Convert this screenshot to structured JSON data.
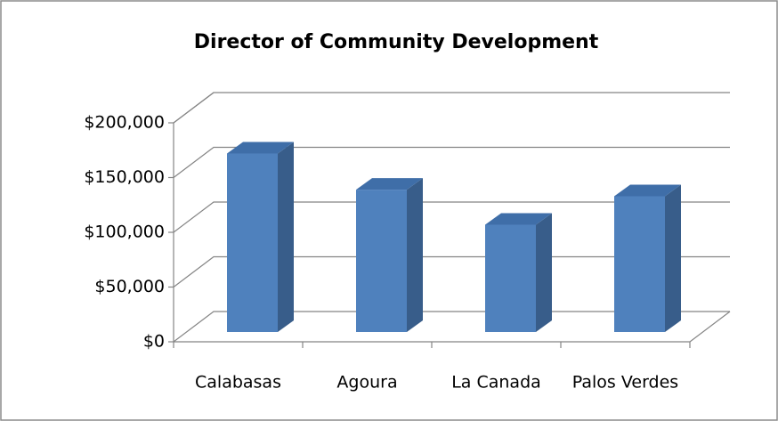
{
  "chart_data": {
    "type": "bar3d",
    "title": "Director of Community Development",
    "categories": [
      "Calabasas",
      "Agoura",
      "La Canada",
      "Palos Verdes"
    ],
    "values": [
      163000,
      130000,
      98000,
      124000
    ],
    "color": "#4f81bd",
    "ylim": [
      0,
      200000
    ],
    "yticks": [
      {
        "value": 0,
        "label": "$0"
      },
      {
        "value": 50000,
        "label": "$50,000"
      },
      {
        "value": 100000,
        "label": "$100,000"
      },
      {
        "value": 150000,
        "label": "$150,000"
      },
      {
        "value": 200000,
        "label": "$200,000"
      }
    ],
    "grid": true
  }
}
